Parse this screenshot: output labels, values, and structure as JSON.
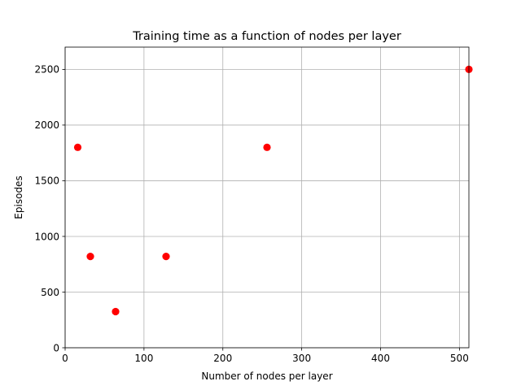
{
  "chart_data": {
    "type": "scatter",
    "title": "Training time as a function of nodes per layer",
    "xlabel": "Number of nodes per layer",
    "ylabel": "Episodes",
    "xlim": [
      0,
      512
    ],
    "ylim": [
      0,
      2700
    ],
    "xticks": [
      0,
      100,
      200,
      300,
      400,
      500
    ],
    "yticks": [
      0,
      500,
      1000,
      1500,
      2000,
      2500
    ],
    "grid": true,
    "marker_color": "#ff0000",
    "points": [
      {
        "x": 16,
        "y": 1800
      },
      {
        "x": 32,
        "y": 820
      },
      {
        "x": 64,
        "y": 325
      },
      {
        "x": 128,
        "y": 820
      },
      {
        "x": 256,
        "y": 1800
      },
      {
        "x": 512,
        "y": 2500
      }
    ]
  }
}
